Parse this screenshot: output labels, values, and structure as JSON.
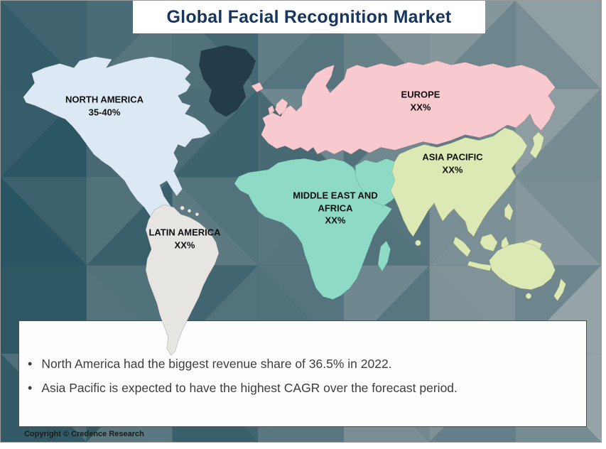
{
  "title": "Global Facial Recognition Market",
  "map_labels": {
    "north_america": {
      "line1": "NORTH AMERICA",
      "line2": "35-40%"
    },
    "europe": {
      "line1": "EUROPE",
      "line2": "XX%"
    },
    "asia_pacific": {
      "line1": "ASIA PACIFIC",
      "line2": "XX%"
    },
    "middle_east_africa": {
      "line1": "MIDDLE EAST AND",
      "line2": "AFRICA",
      "line3": "XX%"
    },
    "latin_america": {
      "line1": "LATIN AMERICA",
      "line2": "XX%"
    }
  },
  "notes": {
    "bullets": [
      "North America had the biggest revenue share of 36.5% in 2022.",
      "Asia Pacific is expected to have the highest CAGR over the forecast period."
    ]
  },
  "copyright": "Copyright © Credence Research",
  "colors": {
    "north_america": "#dce9f4",
    "latin_america": "#e6e5e2",
    "europe": "#f8c9ce",
    "middle_east_africa": "#8edac6",
    "asia_pacific": "#dde9b5",
    "greenland": "#243c49",
    "title_text": "#17365d"
  }
}
